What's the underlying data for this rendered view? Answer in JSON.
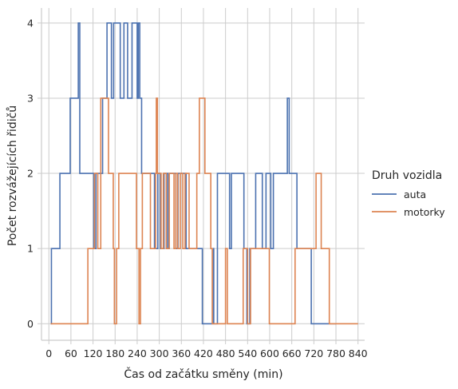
{
  "chart_data": {
    "type": "line",
    "step": "post",
    "xlabel": "Čas od začátku směny (min)",
    "ylabel": "Počet rozvážejících řidičů",
    "xlim": [
      -20,
      858
    ],
    "ylim": [
      -0.22,
      4.2
    ],
    "x_ticks": [
      0,
      60,
      120,
      180,
      240,
      300,
      360,
      420,
      480,
      540,
      600,
      660,
      720,
      780,
      840
    ],
    "y_ticks": [
      0,
      1,
      2,
      3,
      4
    ],
    "grid": true,
    "legend": {
      "title": "Druh vozidla",
      "placement": "right"
    },
    "series": [
      {
        "name": "auta",
        "color": "#4c72b0",
        "points": [
          [
            5,
            0
          ],
          [
            7,
            1
          ],
          [
            30,
            2
          ],
          [
            58,
            3
          ],
          [
            80,
            4
          ],
          [
            84,
            2
          ],
          [
            116,
            2
          ],
          [
            122,
            1
          ],
          [
            128,
            2
          ],
          [
            146,
            3
          ],
          [
            158,
            4
          ],
          [
            170,
            3
          ],
          [
            176,
            4
          ],
          [
            194,
            3
          ],
          [
            204,
            4
          ],
          [
            214,
            3
          ],
          [
            226,
            4
          ],
          [
            240,
            3
          ],
          [
            243,
            4
          ],
          [
            247,
            3
          ],
          [
            252,
            2
          ],
          [
            287,
            1
          ],
          [
            296,
            2
          ],
          [
            303,
            1
          ],
          [
            313,
            2
          ],
          [
            323,
            1
          ],
          [
            327,
            2
          ],
          [
            338,
            2
          ],
          [
            345,
            1
          ],
          [
            351,
            2
          ],
          [
            373,
            1
          ],
          [
            417,
            0
          ],
          [
            447,
            1
          ],
          [
            448,
            0
          ],
          [
            458,
            2
          ],
          [
            491,
            1
          ],
          [
            496,
            2
          ],
          [
            530,
            1
          ],
          [
            538,
            0
          ],
          [
            546,
            1
          ],
          [
            562,
            2
          ],
          [
            580,
            1
          ],
          [
            590,
            2
          ],
          [
            603,
            1
          ],
          [
            610,
            2
          ],
          [
            648,
            3
          ],
          [
            653,
            2
          ],
          [
            674,
            1
          ],
          [
            713,
            0
          ],
          [
            766,
            0
          ],
          [
            780,
            0
          ]
        ]
      },
      {
        "name": "motorky",
        "color": "#dd8452",
        "points": [
          [
            5,
            0
          ],
          [
            96,
            0
          ],
          [
            106,
            1
          ],
          [
            124,
            2
          ],
          [
            133,
            1
          ],
          [
            141,
            3
          ],
          [
            162,
            2
          ],
          [
            175,
            1
          ],
          [
            178,
            0
          ],
          [
            184,
            1
          ],
          [
            190,
            2
          ],
          [
            238,
            1
          ],
          [
            245,
            0
          ],
          [
            249,
            1
          ],
          [
            254,
            2
          ],
          [
            276,
            1
          ],
          [
            290,
            2
          ],
          [
            292,
            3
          ],
          [
            295,
            2
          ],
          [
            305,
            1
          ],
          [
            311,
            2
          ],
          [
            319,
            1
          ],
          [
            327,
            2
          ],
          [
            340,
            1
          ],
          [
            345,
            2
          ],
          [
            350,
            1
          ],
          [
            357,
            2
          ],
          [
            364,
            1
          ],
          [
            370,
            2
          ],
          [
            381,
            1
          ],
          [
            402,
            2
          ],
          [
            409,
            3
          ],
          [
            424,
            2
          ],
          [
            440,
            1
          ],
          [
            444,
            0
          ],
          [
            480,
            1
          ],
          [
            485,
            0
          ],
          [
            528,
            1
          ],
          [
            540,
            0
          ],
          [
            548,
            1
          ],
          [
            555,
            1
          ],
          [
            568,
            1
          ],
          [
            575,
            1
          ],
          [
            599,
            0
          ],
          [
            669,
            1
          ],
          [
            679,
            1
          ],
          [
            706,
            1
          ],
          [
            726,
            2
          ],
          [
            740,
            1
          ],
          [
            762,
            0
          ],
          [
            816,
            0
          ],
          [
            840,
            0
          ]
        ]
      }
    ]
  }
}
